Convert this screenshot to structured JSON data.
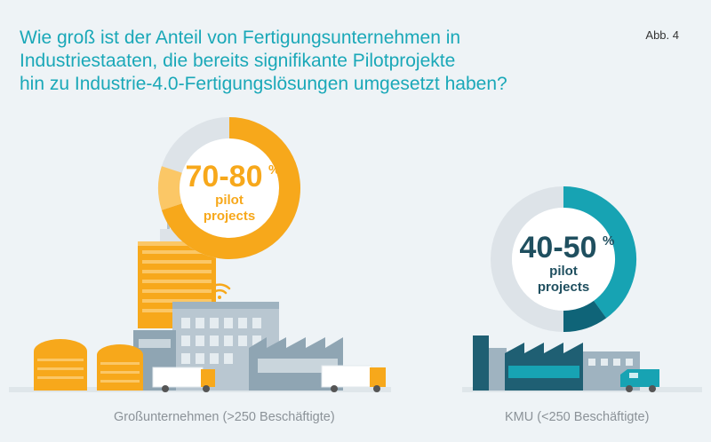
{
  "header": {
    "title": "Wie groß ist der Anteil von Fertigungsunternehmen in\nIndustriestaaten, die bereits signifikante Pilotprojekte\nhin zu Industrie-4.0-Fertigungslösungen umgesetzt haben?",
    "figure_label": "Abb. 4"
  },
  "chart_data": [
    {
      "type": "pie",
      "category": "Großunternehmen (>250 Beschäftigte)",
      "value_label": "70-80",
      "unit": "%",
      "sub_label_1": "pilot",
      "sub_label_2": "projects",
      "range": [
        70,
        80
      ],
      "colors": {
        "main": "#f7a81b",
        "band": "#fbc766",
        "rest": "#dde3e8"
      }
    },
    {
      "type": "pie",
      "category": "KMU (<250 Beschäftigte)",
      "value_label": "40-50",
      "unit": "%",
      "sub_label_1": "pilot",
      "sub_label_2": "projects",
      "range": [
        40,
        50
      ],
      "colors": {
        "main": "#17a3b3",
        "band": "#0f6478",
        "rest": "#dde3e8"
      }
    }
  ],
  "colors": {
    "accent": "#1aa8b8",
    "orange": "#f7a81b",
    "teal": "#17a3b3",
    "dark_teal": "#1f5f73",
    "grey_building": "#9fb3c0",
    "caption": "#8b9298"
  }
}
